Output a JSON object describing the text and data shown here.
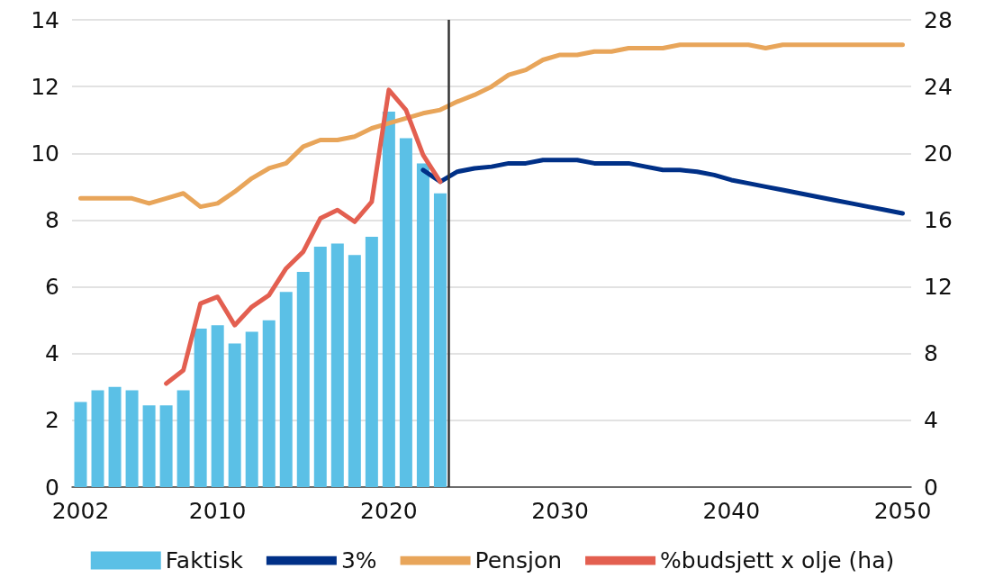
{
  "chart_data": {
    "type": "bar",
    "xlim": [
      2001.5,
      2050.5
    ],
    "xticks": [
      2002,
      2010,
      2020,
      2030,
      2040,
      2050
    ],
    "ylim": [
      0,
      14
    ],
    "yticks": [
      0,
      2,
      4,
      6,
      8,
      10,
      12,
      14
    ],
    "y2lim": [
      0,
      28
    ],
    "y2ticks": [
      0,
      4,
      8,
      12,
      16,
      20,
      24,
      28
    ],
    "grid": "y",
    "legend": "bottom",
    "marker": "none",
    "line_style": "solid",
    "ref_lines": [
      {
        "axis": "x",
        "value": 2023.5,
        "color": "#333333"
      }
    ],
    "series": [
      {
        "name": "Faktisk",
        "color": "#5bc0e6",
        "x": [
          2002,
          2003,
          2004,
          2005,
          2006,
          2007,
          2008,
          2009,
          2010,
          2011,
          2012,
          2013,
          2014,
          2015,
          2016,
          2017,
          2018,
          2019,
          2020,
          2021,
          2022,
          2023
        ],
        "values": [
          2.55,
          2.9,
          3.0,
          2.9,
          2.45,
          2.45,
          2.9,
          4.75,
          4.85,
          4.3,
          4.65,
          5.0,
          5.85,
          6.45,
          7.2,
          7.3,
          6.95,
          7.5,
          11.25,
          10.45,
          9.7,
          8.8
        ]
      },
      {
        "name": "3%",
        "type": "line",
        "color": "#003087",
        "x": [
          2022,
          2023,
          2024,
          2025,
          2026,
          2027,
          2028,
          2029,
          2030,
          2031,
          2032,
          2033,
          2034,
          2035,
          2036,
          2037,
          2038,
          2039,
          2040,
          2041,
          2042,
          2043,
          2044,
          2045,
          2046,
          2047,
          2048,
          2049,
          2050
        ],
        "values": [
          9.5,
          9.15,
          9.45,
          9.55,
          9.6,
          9.7,
          9.7,
          9.8,
          9.8,
          9.8,
          9.7,
          9.7,
          9.7,
          9.6,
          9.5,
          9.5,
          9.45,
          9.35,
          9.2,
          9.1,
          9.0,
          8.9,
          8.8,
          8.7,
          8.6,
          8.5,
          8.4,
          8.3,
          8.2
        ]
      },
      {
        "name": "Pensjon",
        "type": "line",
        "color": "#e8a55a",
        "x": [
          2002,
          2003,
          2004,
          2005,
          2006,
          2007,
          2008,
          2009,
          2010,
          2011,
          2012,
          2013,
          2014,
          2015,
          2016,
          2017,
          2018,
          2019,
          2020,
          2021,
          2022,
          2023,
          2024,
          2025,
          2026,
          2027,
          2028,
          2029,
          2030,
          2031,
          2032,
          2033,
          2034,
          2035,
          2036,
          2037,
          2038,
          2039,
          2040,
          2041,
          2042,
          2043,
          2044,
          2045,
          2046,
          2047,
          2048,
          2049,
          2050
        ],
        "values": [
          8.65,
          8.65,
          8.65,
          8.65,
          8.5,
          8.65,
          8.8,
          8.4,
          8.5,
          8.85,
          9.25,
          9.55,
          9.7,
          10.2,
          10.4,
          10.4,
          10.5,
          10.75,
          10.9,
          11.05,
          11.2,
          11.3,
          11.55,
          11.75,
          12.0,
          12.35,
          12.5,
          12.8,
          12.95,
          12.95,
          13.05,
          13.05,
          13.15,
          13.15,
          13.15,
          13.25,
          13.25,
          13.25,
          13.25,
          13.25,
          13.15,
          13.25,
          13.25,
          13.25,
          13.25,
          13.25,
          13.25,
          13.25,
          13.25
        ]
      },
      {
        "name": "%budsjett x olje (ha)",
        "type": "line",
        "axis": "y2",
        "color": "#e35f50",
        "x": [
          2007,
          2008,
          2009,
          2010,
          2011,
          2012,
          2013,
          2014,
          2015,
          2016,
          2017,
          2018,
          2019,
          2020,
          2021,
          2022,
          2023
        ],
        "values": [
          6.2,
          7.0,
          11.0,
          11.4,
          9.7,
          10.8,
          11.5,
          13.1,
          14.1,
          16.1,
          16.6,
          15.9,
          17.1,
          23.8,
          22.6,
          19.9,
          18.3
        ]
      }
    ]
  }
}
